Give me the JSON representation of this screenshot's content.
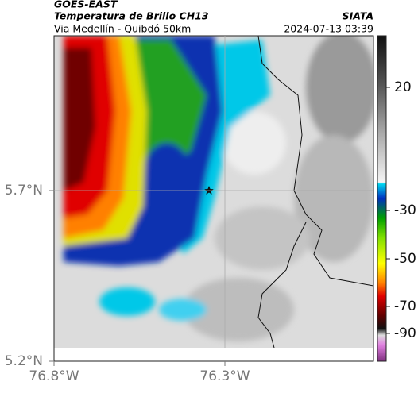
{
  "header": {
    "satellite": "GOES-EAST",
    "product": "Temperatura de Brillo CH13",
    "route": "Via Medellín - Quibdó 50km",
    "source": "SIATA",
    "timestamp": "2024-07-13 03:39"
  },
  "map": {
    "lat_ticks": [
      {
        "value": 5.7,
        "label": "5.7°N"
      },
      {
        "value": 5.2,
        "label": "5.2°N"
      }
    ],
    "lon_ticks": [
      {
        "value": -76.8,
        "label": "76.8°W"
      },
      {
        "value": -76.3,
        "label": "76.3°W"
      }
    ],
    "grid": true,
    "colorbar": {
      "ticks": [
        20,
        -30,
        -50,
        -70,
        -90
      ]
    }
  }
}
